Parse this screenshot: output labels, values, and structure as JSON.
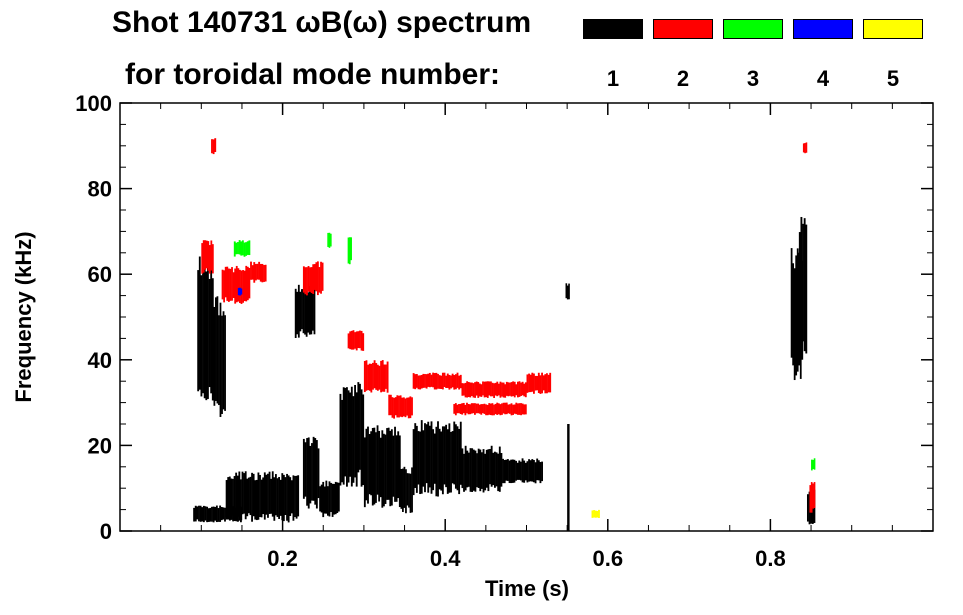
{
  "header": {
    "title_line1": "Shot 140731 ωB(ω) spectrum",
    "title_line2": "for toroidal mode number:"
  },
  "legend": {
    "items": [
      {
        "label": "1",
        "color": "#000000"
      },
      {
        "label": "2",
        "color": "#ff0000"
      },
      {
        "label": "3",
        "color": "#00ff00"
      },
      {
        "label": "4",
        "color": "#0000ff"
      },
      {
        "label": "5",
        "color": "#ffff00"
      }
    ]
  },
  "chart_data": {
    "type": "heatmap",
    "xlabel": "Time (s)",
    "ylabel": "Frequency (kHz)",
    "xlim": [
      0.0,
      1.0
    ],
    "ylim": [
      0,
      100
    ],
    "xticks": [
      0.2,
      0.4,
      0.6,
      0.8
    ],
    "xtick_labels": [
      "0.2",
      "0.4",
      "0.6",
      "0.8"
    ],
    "yticks": [
      0,
      20,
      40,
      60,
      80,
      100
    ],
    "ytick_labels": [
      "0",
      "20",
      "40",
      "60",
      "80",
      "100"
    ],
    "grid": false,
    "series": [
      {
        "mode": 1,
        "color": "#000000",
        "regions": [
          {
            "t": [
              0.095,
              0.115
            ],
            "f": [
              30,
              65
            ]
          },
          {
            "t": [
              0.115,
              0.13
            ],
            "f": [
              25,
              55
            ]
          },
          {
            "t": [
              0.09,
              0.15
            ],
            "f": [
              2,
              6
            ]
          },
          {
            "t": [
              0.13,
              0.22
            ],
            "f": [
              2,
              14
            ]
          },
          {
            "t": [
              0.215,
              0.24
            ],
            "f": [
              45,
              58
            ]
          },
          {
            "t": [
              0.225,
              0.245
            ],
            "f": [
              5,
              22
            ]
          },
          {
            "t": [
              0.245,
              0.27
            ],
            "f": [
              3,
              12
            ]
          },
          {
            "t": [
              0.27,
              0.3
            ],
            "f": [
              10,
              35
            ]
          },
          {
            "t": [
              0.3,
              0.345
            ],
            "f": [
              5,
              25
            ]
          },
          {
            "t": [
              0.345,
              0.36
            ],
            "f": [
              4,
              15
            ]
          },
          {
            "t": [
              0.36,
              0.42
            ],
            "f": [
              8,
              26
            ]
          },
          {
            "t": [
              0.42,
              0.47
            ],
            "f": [
              9,
              20
            ]
          },
          {
            "t": [
              0.47,
              0.52
            ],
            "f": [
              11,
              17
            ]
          },
          {
            "t": [
              0.548,
              0.553
            ],
            "f": [
              54,
              58
            ]
          },
          {
            "t": [
              0.55,
              0.553
            ],
            "f": [
              0,
              25
            ]
          },
          {
            "t": [
              0.825,
              0.84
            ],
            "f": [
              35,
              67
            ]
          },
          {
            "t": [
              0.835,
              0.845
            ],
            "f": [
              40,
              76
            ]
          },
          {
            "t": [
              0.845,
              0.855
            ],
            "f": [
              1,
              10
            ]
          }
        ]
      },
      {
        "mode": 2,
        "color": "#ff0000",
        "regions": [
          {
            "t": [
              0.1,
              0.115
            ],
            "f": [
              60,
              68
            ]
          },
          {
            "t": [
              0.112,
              0.118
            ],
            "f": [
              88,
              92
            ]
          },
          {
            "t": [
              0.125,
              0.16
            ],
            "f": [
              53,
              62
            ]
          },
          {
            "t": [
              0.16,
              0.18
            ],
            "f": [
              58,
              63
            ]
          },
          {
            "t": [
              0.225,
              0.25
            ],
            "f": [
              55,
              63
            ]
          },
          {
            "t": [
              0.28,
              0.3
            ],
            "f": [
              42,
              47
            ]
          },
          {
            "t": [
              0.3,
              0.33
            ],
            "f": [
              32,
              40
            ]
          },
          {
            "t": [
              0.33,
              0.36
            ],
            "f": [
              26,
              32
            ]
          },
          {
            "t": [
              0.36,
              0.42
            ],
            "f": [
              33,
              37
            ]
          },
          {
            "t": [
              0.42,
              0.5
            ],
            "f": [
              31,
              35
            ]
          },
          {
            "t": [
              0.5,
              0.53
            ],
            "f": [
              32,
              37
            ]
          },
          {
            "t": [
              0.41,
              0.5
            ],
            "f": [
              27,
              30
            ]
          },
          {
            "t": [
              0.84,
              0.845
            ],
            "f": [
              88,
              91
            ]
          },
          {
            "t": [
              0.848,
              0.855
            ],
            "f": [
              4,
              12
            ]
          }
        ]
      },
      {
        "mode": 3,
        "color": "#00ff00",
        "regions": [
          {
            "t": [
              0.14,
              0.16
            ],
            "f": [
              64,
              68
            ]
          },
          {
            "t": [
              0.255,
              0.26
            ],
            "f": [
              66,
              70
            ]
          },
          {
            "t": [
              0.28,
              0.285
            ],
            "f": [
              62,
              70
            ]
          },
          {
            "t": [
              0.85,
              0.855
            ],
            "f": [
              14,
              17
            ]
          }
        ]
      },
      {
        "mode": 4,
        "color": "#0000ff",
        "regions": [
          {
            "t": [
              0.145,
              0.15
            ],
            "f": [
              55,
              57
            ]
          }
        ]
      },
      {
        "mode": 5,
        "color": "#ffff00",
        "regions": [
          {
            "t": [
              0.58,
              0.59
            ],
            "f": [
              3,
              5
            ]
          }
        ]
      }
    ]
  }
}
